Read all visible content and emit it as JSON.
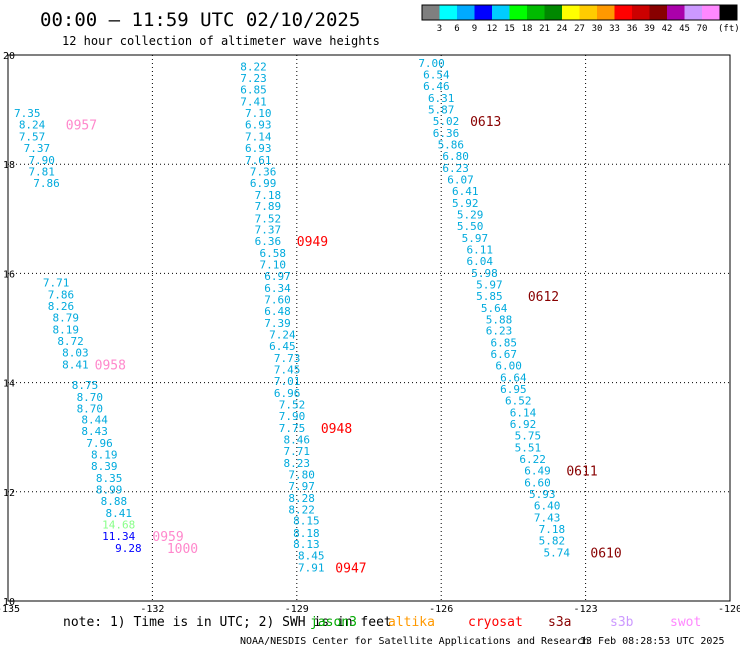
{
  "chart_data": {
    "type": "scatter",
    "title": "00:00 – 11:59 UTC 02/10/2025",
    "subtitle": "12 hour collection of altimeter wave heights",
    "xlabel": "",
    "ylabel": "",
    "xlim": [
      -135,
      -120
    ],
    "ylim": [
      10,
      20
    ],
    "x_ticks": [
      "-135",
      "-132",
      "-129",
      "-126",
      "-123",
      "-120"
    ],
    "y_ticks": [
      "20",
      "18",
      "16",
      "14",
      "12",
      "10"
    ],
    "grid": true,
    "colorbar": {
      "unit": "(ft)",
      "ticks": [
        "3",
        "6",
        "9",
        "12",
        "15",
        "18",
        "21",
        "24",
        "27",
        "30",
        "33",
        "36",
        "39",
        "42",
        "45",
        "70"
      ],
      "colors": [
        "#7f7f7f",
        "#00ffff",
        "#00aaff",
        "#0000ff",
        "#00ccff",
        "#00ff00",
        "#00bb00",
        "#008800",
        "#ffff00",
        "#ffcc00",
        "#ff9900",
        "#ff0000",
        "#cc0000",
        "#880000",
        "#aa00aa",
        "#cc99ff",
        "#ff88ff",
        "#000000"
      ]
    },
    "series": [
      {
        "name": "track-0957",
        "color": "#00aadd",
        "points": [
          {
            "x": -134.6,
            "y": 18.94,
            "v": "7.35"
          },
          {
            "x": -134.5,
            "y": 18.73,
            "v": "8.24"
          },
          {
            "x": -134.5,
            "y": 18.51,
            "v": "7.57"
          },
          {
            "x": -134.4,
            "y": 18.3,
            "v": "7.37"
          },
          {
            "x": -134.3,
            "y": 18.08,
            "v": "7.90"
          },
          {
            "x": -134.3,
            "y": 17.87,
            "v": "7.81"
          },
          {
            "x": -134.2,
            "y": 17.66,
            "v": "7.86"
          }
        ]
      },
      {
        "name": "track-0958",
        "color": "#00aadd",
        "points": [
          {
            "x": -134.0,
            "y": 15.83,
            "v": "7.71"
          },
          {
            "x": -133.9,
            "y": 15.61,
            "v": "7.86"
          },
          {
            "x": -133.9,
            "y": 15.4,
            "v": "8.26"
          },
          {
            "x": -133.8,
            "y": 15.19,
            "v": "8.79"
          },
          {
            "x": -133.8,
            "y": 14.97,
            "v": "8.19"
          },
          {
            "x": -133.7,
            "y": 14.76,
            "v": "8.72"
          },
          {
            "x": -133.6,
            "y": 14.55,
            "v": "8.03"
          },
          {
            "x": -133.6,
            "y": 14.33,
            "v": "8.41"
          }
        ]
      },
      {
        "name": "track-0959",
        "color": "#00aadd",
        "points": [
          {
            "x": -133.4,
            "y": 13.96,
            "v": "8.75"
          },
          {
            "x": -133.3,
            "y": 13.74,
            "v": "8.70"
          },
          {
            "x": -133.3,
            "y": 13.53,
            "v": "8.70"
          },
          {
            "x": -133.2,
            "y": 13.32,
            "v": "8.44"
          },
          {
            "x": -133.2,
            "y": 13.11,
            "v": "8.43"
          },
          {
            "x": -133.1,
            "y": 12.89,
            "v": "7.96"
          },
          {
            "x": -133.0,
            "y": 12.68,
            "v": "8.19"
          },
          {
            "x": -133.0,
            "y": 12.47,
            "v": "8.39"
          },
          {
            "x": -132.9,
            "y": 12.25,
            "v": "8.35"
          },
          {
            "x": -132.9,
            "y": 12.04,
            "v": "8.99"
          },
          {
            "x": -132.8,
            "y": 11.83,
            "v": "8.88"
          },
          {
            "x": -132.7,
            "y": 11.61,
            "v": "8.41"
          }
        ]
      },
      {
        "name": "track-1000",
        "color": "#00aadd",
        "points": [
          {
            "x": -132.7,
            "y": 11.4,
            "v": "14.68",
            "c": "#88ff88"
          },
          {
            "x": -132.7,
            "y": 11.19,
            "v": "11.34",
            "c": "#0000ff"
          },
          {
            "x": -132.5,
            "y": 10.97,
            "v": "9.28",
            "c": "#0000ff"
          }
        ]
      },
      {
        "name": "track-0949",
        "color": "#00aadd",
        "points": [
          {
            "x": -129.9,
            "y": 19.79,
            "v": "8.22"
          },
          {
            "x": -129.9,
            "y": 19.58,
            "v": "7.23"
          },
          {
            "x": -129.9,
            "y": 19.37,
            "v": "6.85"
          },
          {
            "x": -129.9,
            "y": 19.15,
            "v": "7.41"
          },
          {
            "x": -129.8,
            "y": 18.94,
            "v": "7.10"
          },
          {
            "x": -129.8,
            "y": 18.73,
            "v": "6.93"
          },
          {
            "x": -129.8,
            "y": 18.51,
            "v": "7.14"
          },
          {
            "x": -129.8,
            "y": 18.3,
            "v": "6.93"
          },
          {
            "x": -129.8,
            "y": 18.08,
            "v": "7.61"
          },
          {
            "x": -129.7,
            "y": 17.87,
            "v": "7.36"
          },
          {
            "x": -129.7,
            "y": 17.66,
            "v": "6.99"
          },
          {
            "x": -129.6,
            "y": 17.44,
            "v": "7.18"
          },
          {
            "x": -129.6,
            "y": 17.23,
            "v": "7.89"
          },
          {
            "x": -129.6,
            "y": 17.01,
            "v": "7.52"
          },
          {
            "x": -129.6,
            "y": 16.8,
            "v": "7.37"
          },
          {
            "x": -129.6,
            "y": 16.59,
            "v": "6.36"
          },
          {
            "x": -129.5,
            "y": 16.37,
            "v": "6.58"
          },
          {
            "x": -129.5,
            "y": 16.16,
            "v": "7.10"
          },
          {
            "x": -129.4,
            "y": 15.95,
            "v": "6.97"
          },
          {
            "x": -129.4,
            "y": 15.73,
            "v": "6.34"
          },
          {
            "x": -129.4,
            "y": 15.52,
            "v": "7.60"
          },
          {
            "x": -129.4,
            "y": 15.31,
            "v": "6.48"
          },
          {
            "x": -129.4,
            "y": 15.09,
            "v": "7.39"
          },
          {
            "x": -129.3,
            "y": 14.88,
            "v": "7.24"
          },
          {
            "x": -129.3,
            "y": 14.67,
            "v": "6.45"
          },
          {
            "x": -129.2,
            "y": 14.45,
            "v": "7.73"
          }
        ]
      },
      {
        "name": "track-0948",
        "color": "#00aadd",
        "points": [
          {
            "x": -129.2,
            "y": 14.24,
            "v": "7.45"
          },
          {
            "x": -129.2,
            "y": 14.03,
            "v": "7.01"
          },
          {
            "x": -129.2,
            "y": 13.81,
            "v": "6.96"
          },
          {
            "x": -129.1,
            "y": 13.6,
            "v": "7.52"
          },
          {
            "x": -129.1,
            "y": 13.39,
            "v": "7.90"
          },
          {
            "x": -129.1,
            "y": 13.17,
            "v": "7.75"
          },
          {
            "x": -129.0,
            "y": 12.96,
            "v": "8.46"
          },
          {
            "x": -129.0,
            "y": 12.75,
            "v": "7.71"
          },
          {
            "x": -129.0,
            "y": 12.53,
            "v": "8.23"
          },
          {
            "x": -128.9,
            "y": 12.32,
            "v": "7.80"
          },
          {
            "x": -128.9,
            "y": 12.11,
            "v": "7.97"
          }
        ]
      },
      {
        "name": "track-0947",
        "color": "#00aadd",
        "points": [
          {
            "x": -128.9,
            "y": 11.89,
            "v": "8.28"
          },
          {
            "x": -128.9,
            "y": 11.68,
            "v": "8.22"
          },
          {
            "x": -128.8,
            "y": 11.47,
            "v": "8.15"
          },
          {
            "x": -128.8,
            "y": 11.25,
            "v": "8.18"
          },
          {
            "x": -128.8,
            "y": 11.04,
            "v": "8.13"
          },
          {
            "x": -128.7,
            "y": 10.83,
            "v": "8.45"
          },
          {
            "x": -128.7,
            "y": 10.61,
            "v": "7.91"
          }
        ]
      },
      {
        "name": "track-0613",
        "color": "#00aadd",
        "points": [
          {
            "x": -126.2,
            "y": 19.85,
            "v": "7.00"
          },
          {
            "x": -126.1,
            "y": 19.64,
            "v": "6.54"
          },
          {
            "x": -126.1,
            "y": 19.43,
            "v": "6.46"
          },
          {
            "x": -126.0,
            "y": 19.21,
            "v": "6.31"
          },
          {
            "x": -126.0,
            "y": 19.0,
            "v": "5.87"
          },
          {
            "x": -125.9,
            "y": 18.79,
            "v": "5.02"
          },
          {
            "x": -125.9,
            "y": 18.57,
            "v": "6.36"
          },
          {
            "x": -125.8,
            "y": 18.36,
            "v": "5.86"
          },
          {
            "x": -125.7,
            "y": 18.15,
            "v": "6.80"
          }
        ]
      },
      {
        "name": "track-0612",
        "color": "#00aadd",
        "points": [
          {
            "x": -125.7,
            "y": 17.93,
            "v": "6.23"
          },
          {
            "x": -125.6,
            "y": 17.72,
            "v": "6.07"
          },
          {
            "x": -125.5,
            "y": 17.51,
            "v": "6.41"
          },
          {
            "x": -125.5,
            "y": 17.29,
            "v": "5.92"
          },
          {
            "x": -125.4,
            "y": 17.08,
            "v": "5.29"
          },
          {
            "x": -125.4,
            "y": 16.87,
            "v": "5.50"
          },
          {
            "x": -125.3,
            "y": 16.65,
            "v": "5.97"
          },
          {
            "x": -125.2,
            "y": 16.44,
            "v": "6.11"
          },
          {
            "x": -125.2,
            "y": 16.23,
            "v": "6.04"
          },
          {
            "x": -125.1,
            "y": 16.01,
            "v": "5.98"
          },
          {
            "x": -125.0,
            "y": 15.8,
            "v": "5.97"
          },
          {
            "x": -125.0,
            "y": 15.59,
            "v": "5.85"
          },
          {
            "x": -124.9,
            "y": 15.37,
            "v": "5.64"
          },
          {
            "x": -124.8,
            "y": 15.16,
            "v": "5.88"
          },
          {
            "x": -124.8,
            "y": 14.95,
            "v": "6.23"
          },
          {
            "x": -124.7,
            "y": 14.73,
            "v": "6.85"
          },
          {
            "x": -124.7,
            "y": 14.52,
            "v": "6.67"
          }
        ]
      },
      {
        "name": "track-0611",
        "color": "#00aadd",
        "points": [
          {
            "x": -124.6,
            "y": 14.31,
            "v": "6.00"
          },
          {
            "x": -124.5,
            "y": 14.09,
            "v": "6.64"
          },
          {
            "x": -124.5,
            "y": 13.88,
            "v": "6.95"
          },
          {
            "x": -124.4,
            "y": 13.67,
            "v": "6.52"
          },
          {
            "x": -124.3,
            "y": 13.45,
            "v": "6.14"
          },
          {
            "x": -124.3,
            "y": 13.24,
            "v": "6.92"
          },
          {
            "x": -124.2,
            "y": 13.03,
            "v": "5.75"
          },
          {
            "x": -124.2,
            "y": 12.81,
            "v": "5.51"
          },
          {
            "x": -124.1,
            "y": 12.6,
            "v": "6.22"
          },
          {
            "x": -124.0,
            "y": 12.39,
            "v": "6.49"
          },
          {
            "x": -124.0,
            "y": 12.17,
            "v": "6.60"
          },
          {
            "x": -123.9,
            "y": 11.96,
            "v": "5.93"
          }
        ]
      },
      {
        "name": "track-0610",
        "color": "#00aadd",
        "points": [
          {
            "x": -123.8,
            "y": 11.75,
            "v": "6.40"
          },
          {
            "x": -123.8,
            "y": 11.53,
            "v": "7.43"
          },
          {
            "x": -123.7,
            "y": 11.32,
            "v": "7.18"
          },
          {
            "x": -123.7,
            "y": 11.11,
            "v": "5.82"
          },
          {
            "x": -123.6,
            "y": 10.89,
            "v": "5.74"
          }
        ]
      }
    ],
    "pass_times": [
      {
        "label": "0957",
        "x": -133.8,
        "y": 18.73,
        "color": "#ff88cc"
      },
      {
        "label": "0958",
        "x": -133.2,
        "y": 14.33,
        "color": "#ff88cc"
      },
      {
        "label": "0959",
        "x": -132.0,
        "y": 11.19,
        "color": "#ff88cc"
      },
      {
        "label": "1000",
        "x": -131.7,
        "y": 10.97,
        "color": "#ff88cc"
      },
      {
        "label": "0949",
        "x": -129.0,
        "y": 16.59,
        "color": "#ff0000"
      },
      {
        "label": "0948",
        "x": -128.5,
        "y": 13.17,
        "color": "#ff0000"
      },
      {
        "label": "0947",
        "x": -128.2,
        "y": 10.61,
        "color": "#ff0000"
      },
      {
        "label": "0613",
        "x": -125.4,
        "y": 18.79,
        "color": "#880000"
      },
      {
        "label": "0612",
        "x": -124.2,
        "y": 15.59,
        "color": "#880000"
      },
      {
        "label": "0611",
        "x": -123.4,
        "y": 12.39,
        "color": "#880000"
      },
      {
        "label": "0610",
        "x": -122.9,
        "y": 10.89,
        "color": "#880000"
      }
    ]
  },
  "footer": {
    "note": "note: 1) Time is in UTC; 2) SWH is in feet",
    "legend": [
      {
        "name": "jason3",
        "color": "#00aa00"
      },
      {
        "name": "altika",
        "color": "#ff9900"
      },
      {
        "name": "cryosat",
        "color": "#ff0000"
      },
      {
        "name": "s3a",
        "color": "#880000"
      },
      {
        "name": "s3b",
        "color": "#cc99ff"
      },
      {
        "name": "swot",
        "color": "#ff88ff"
      }
    ],
    "credit": "NOAA/NESDIS Center for Satellite Applications and Research",
    "timestamp": "13 Feb 08:28:53 UTC 2025"
  }
}
